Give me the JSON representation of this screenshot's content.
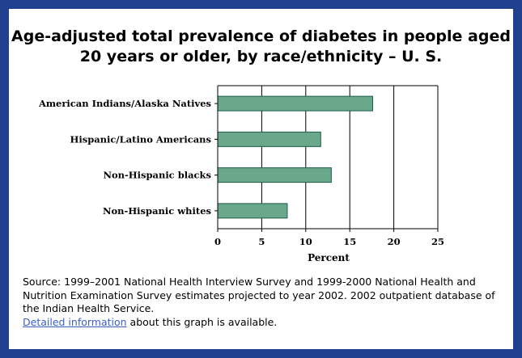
{
  "title_line1": "Age-adjusted total prevalence of diabetes in people aged",
  "title_line2": "20 years or older, by race/ethnicity – U. S.",
  "chart_data": {
    "type": "bar",
    "orientation": "horizontal",
    "categories": [
      "American Indians/Alaska Natives",
      "Hispanic/Latino Americans",
      "Non-Hispanic blacks",
      "Non-Hispanic whites"
    ],
    "values": [
      17.6,
      11.7,
      12.9,
      7.9
    ],
    "xlabel": "Percent",
    "xlim": [
      0,
      25
    ],
    "xticks": [
      "0",
      "5",
      "10",
      "15",
      "20",
      "25"
    ],
    "grid": "vertical",
    "bar_color": "#6aa88c",
    "bar_edge_color": "#1e5e47"
  },
  "source": {
    "text_before": "Source: 1999–2001 National Health Interview Survey and 1999-2000 National Health and Nutrition Examination Survey estimates projected to year 2002. 2002 outpatient database of the Indian Health Service.",
    "link_text": "Detailed information",
    "text_after": " about this graph is available."
  },
  "colors": {
    "frame": "#1f3f8f",
    "link": "#3b5fc4"
  }
}
